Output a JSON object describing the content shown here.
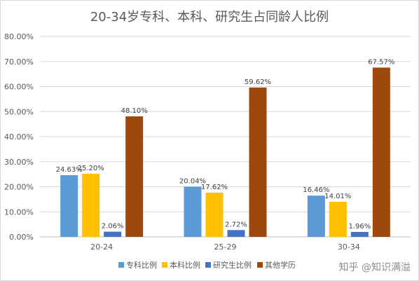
{
  "chart_data": {
    "type": "bar",
    "title": "20-34岁专科、本科、研究生占同龄人比例",
    "categories": [
      "20-24",
      "25-29",
      "30-34"
    ],
    "series": [
      {
        "name": "专科比例",
        "values": [
          24.63,
          20.04,
          16.46
        ],
        "labels": [
          "24.63%",
          "20.04%",
          "16.46%"
        ],
        "color": "#5b9bd5"
      },
      {
        "name": "本科比例",
        "values": [
          25.2,
          17.62,
          14.01
        ],
        "labels": [
          "25.20%",
          "17.62%",
          "14.01%"
        ],
        "color": "#ffc000"
      },
      {
        "name": "研究生比例",
        "values": [
          2.06,
          2.72,
          1.96
        ],
        "labels": [
          "2.06%",
          "2.72%",
          "1.96%"
        ],
        "color": "#4472c4"
      },
      {
        "name": "其他学历",
        "values": [
          48.1,
          59.62,
          67.57
        ],
        "labels": [
          "48.10%",
          "59.62%",
          "67.57%"
        ],
        "color": "#9e480e"
      }
    ],
    "y_ticks": [
      "0.00%",
      "10.00%",
      "20.00%",
      "30.00%",
      "40.00%",
      "50.00%",
      "60.00%",
      "70.00%",
      "80.00%"
    ],
    "ylim": [
      0,
      80
    ],
    "grid": true,
    "legend_position": "bottom",
    "xlabel": "",
    "ylabel": ""
  },
  "watermark": "知乎 @知识满溢"
}
